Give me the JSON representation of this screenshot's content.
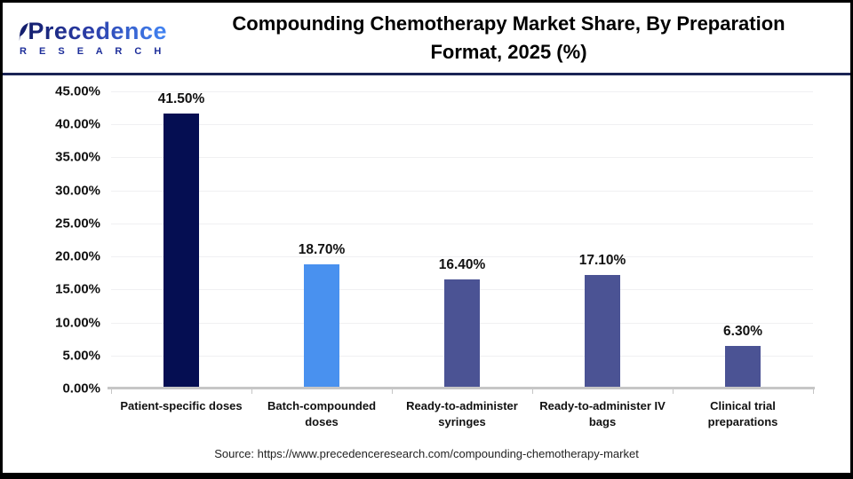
{
  "header": {
    "logo": {
      "brand": "Precedence",
      "sub": "R E S E A R C H"
    },
    "title": "Compounding Chemotherapy Market Share, By Preparation Format, 2025 (%)"
  },
  "chart_data": {
    "type": "bar",
    "title": "Compounding Chemotherapy Market Share, By Preparation Format, 2025 (%)",
    "categories": [
      "Patient-specific doses",
      "Batch-compounded doses",
      "Ready-to-administer syringes",
      "Ready-to-administer IV bags",
      "Clinical trial preparations"
    ],
    "values": [
      41.5,
      18.7,
      16.4,
      17.1,
      6.3
    ],
    "value_labels": [
      "41.50%",
      "18.70%",
      "16.40%",
      "17.10%",
      "6.30%"
    ],
    "bar_colors": [
      "#050e52",
      "#4991ef",
      "#4b5394",
      "#4b5394",
      "#4b5394"
    ],
    "xlabel": "",
    "ylabel": "",
    "ylim": [
      0,
      45
    ],
    "ytick_step": 5,
    "yticks": [
      "0.00%",
      "5.00%",
      "10.00%",
      "15.00%",
      "20.00%",
      "25.00%",
      "30.00%",
      "35.00%",
      "40.00%",
      "45.00%"
    ],
    "grid": true,
    "legend": "none",
    "colors": {
      "grid": "#f0f0f2",
      "axis_baseline": "#c6c6c6",
      "header_divider": "#1b2455",
      "logo_navy": "#141f6e",
      "logo_blue": "#4285f4"
    }
  },
  "source": {
    "text": "Source: https://www.precedenceresearch.com/compounding-chemotherapy-market"
  }
}
